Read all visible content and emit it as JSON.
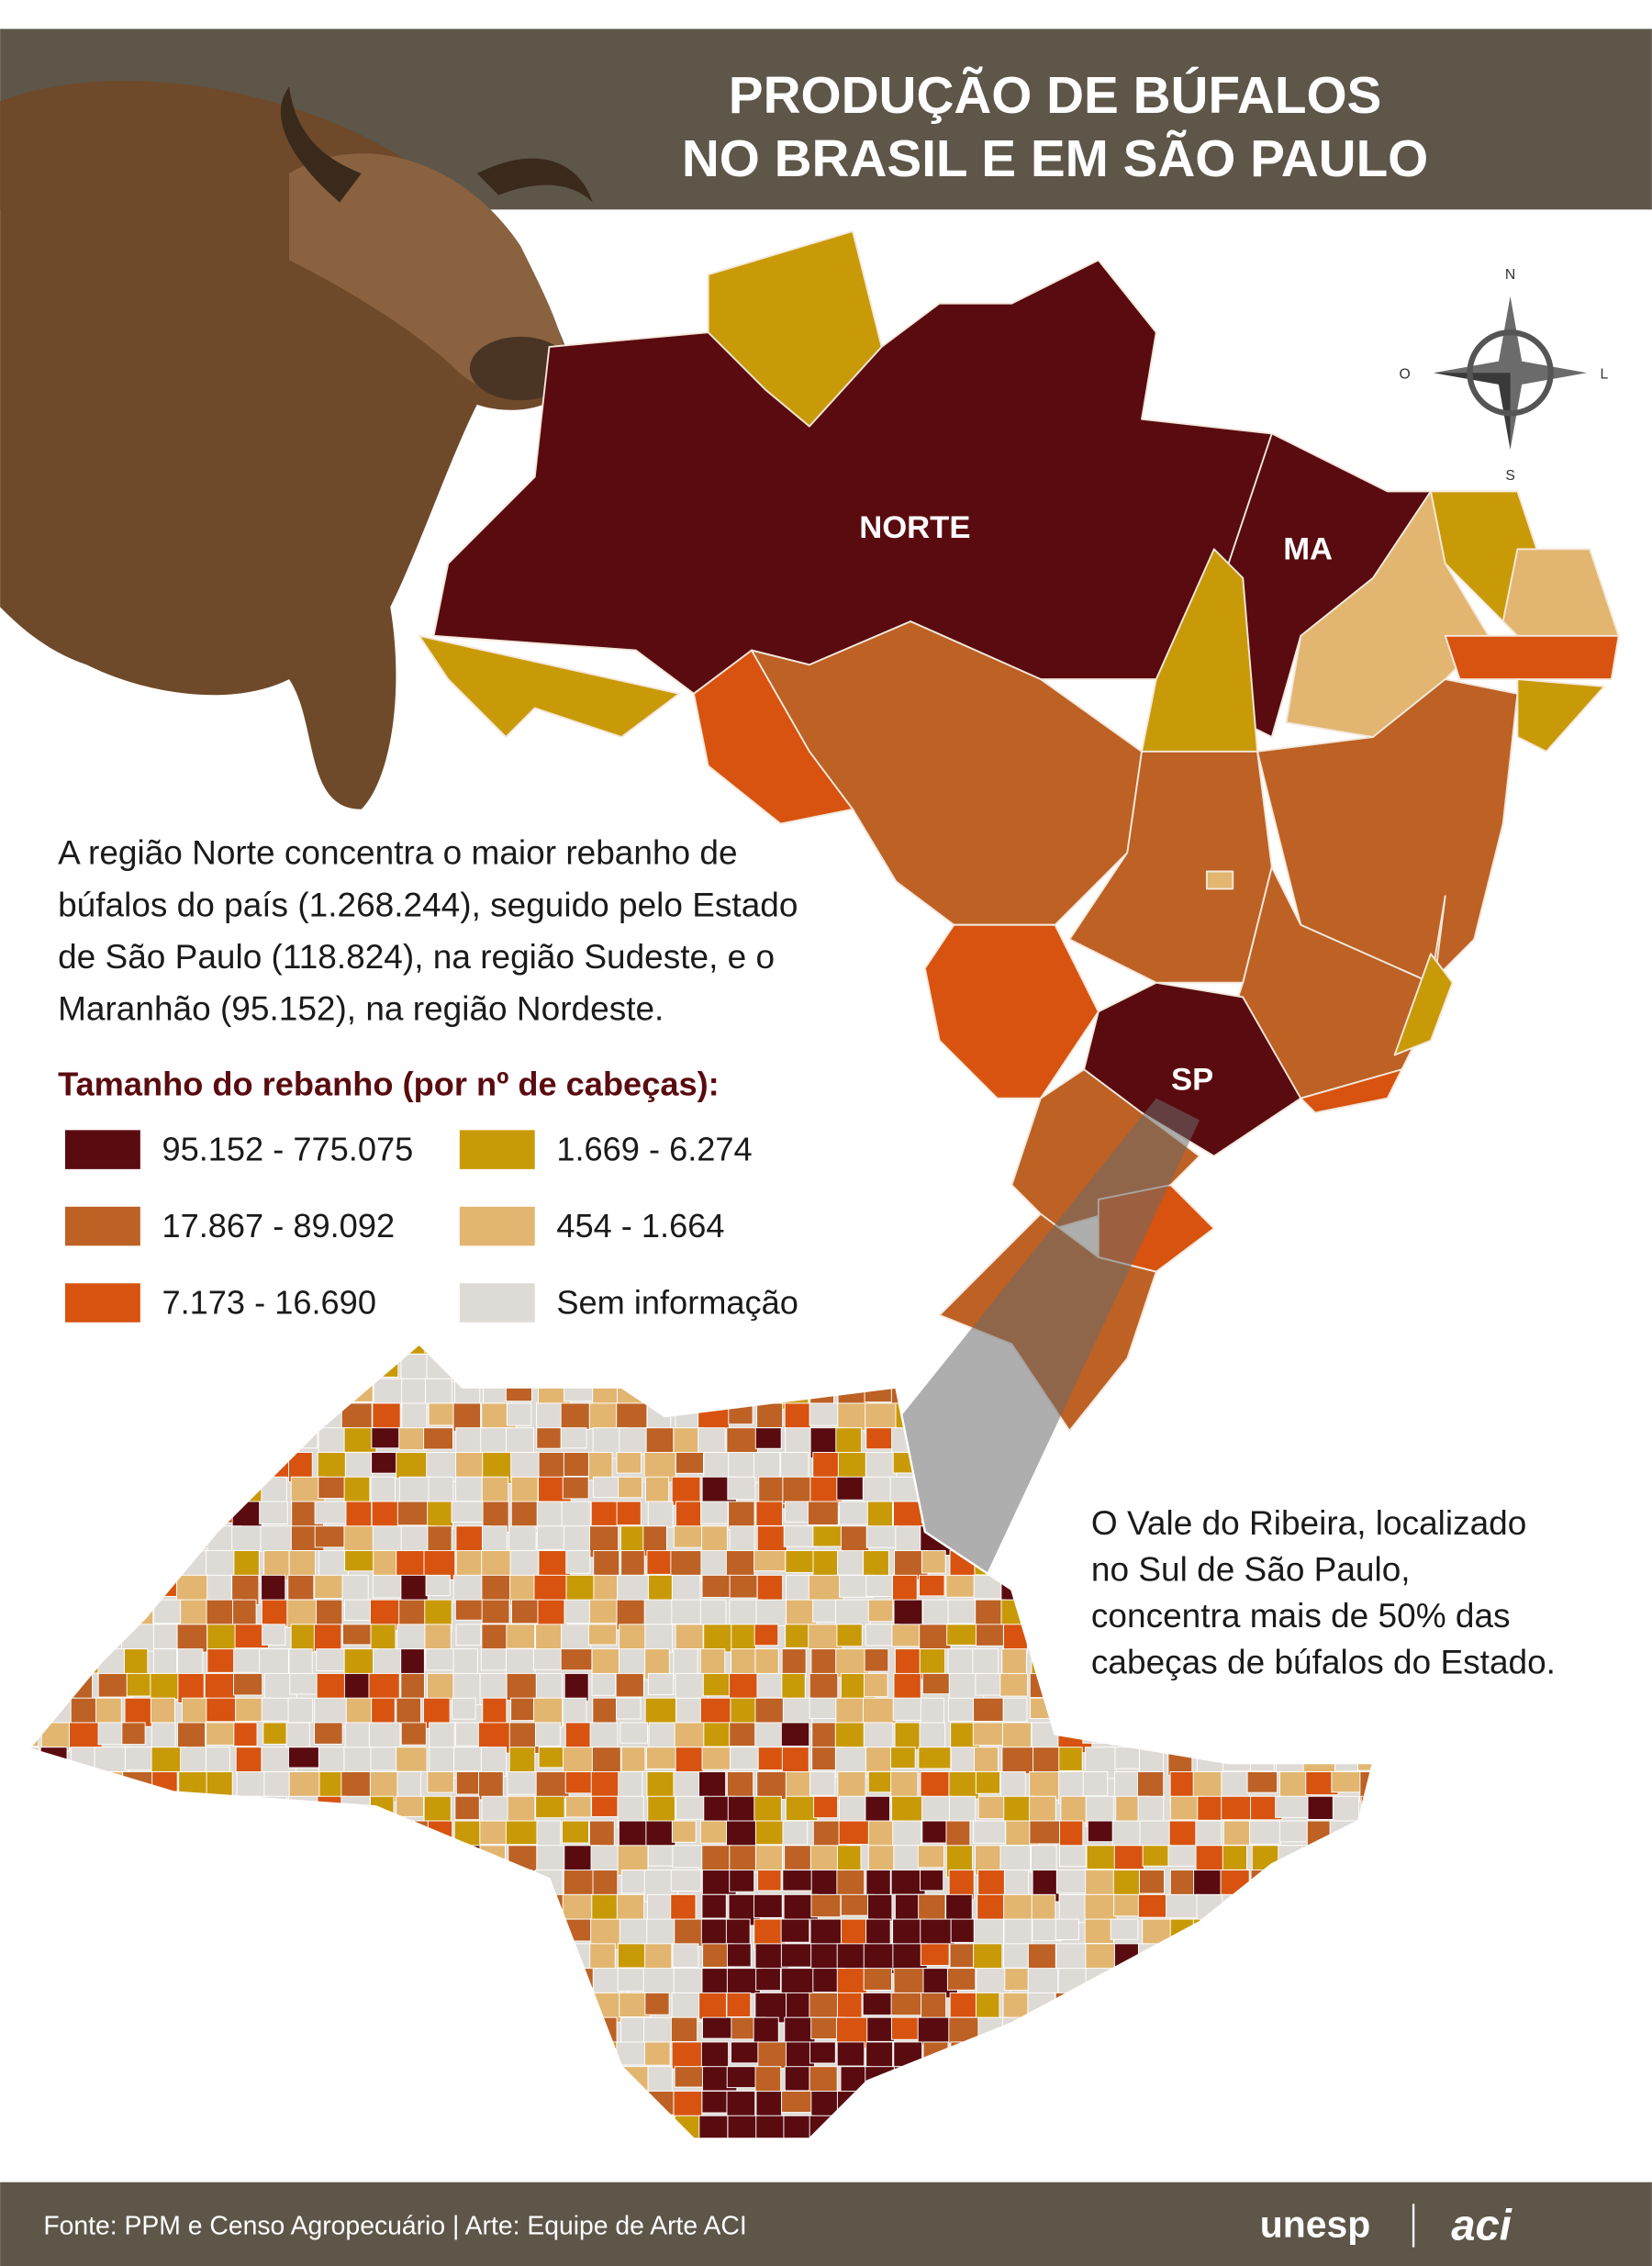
{
  "header": {
    "title_lines": [
      "PRODUÇÃO DE BÚFALOS",
      "NO BRASIL E EM SÃO PAULO"
    ]
  },
  "map_labels": {
    "norte": "NORTE",
    "ma": "MA",
    "sp": "SP"
  },
  "compass": {
    "n": "N",
    "o": "O",
    "l": "L",
    "s": "S"
  },
  "description": {
    "lines": [
      "A região Norte concentra o maior rebanho de",
      "búfalos do país (1.268.244), seguido pelo Estado",
      "de São Paulo (118.824), na região Sudeste, e o",
      "Maranhão (95.152), na região Nordeste."
    ]
  },
  "legend": {
    "title": "Tamanho do rebanho (por nº de cabeças):",
    "items": [
      {
        "label": "95.152 - 775.075",
        "color": "#5a0b10"
      },
      {
        "label": "17.867 - 89.092",
        "color": "#bd6125"
      },
      {
        "label": "7.173 - 16.690",
        "color": "#d7530f"
      },
      {
        "label": "1.669 - 6.274",
        "color": "#c99a08"
      },
      {
        "label": "454 - 1.664",
        "color": "#e2b670"
      },
      {
        "label": "Sem informação",
        "color": "#dedbd6"
      }
    ]
  },
  "vale_note": {
    "lines": [
      "O Vale do Ribeira, localizado",
      "no Sul de São Paulo,",
      "concentra mais de 50% das",
      "cabeças de búfalos do Estado."
    ]
  },
  "footer": {
    "source": "Fonte: PPM e Censo Agropecuário  |  Arte: Equipe de Arte ACI",
    "logo_unesp": "unesp",
    "logo_aci": "aci"
  }
}
